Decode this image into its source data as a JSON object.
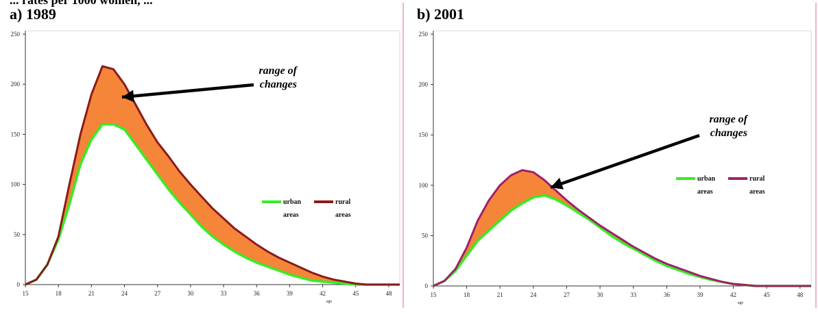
{
  "header": {
    "cut_text": "... rates per 1000 women, ..."
  },
  "chart_data": [
    {
      "type": "area",
      "title": "a) 1989",
      "x": [
        15,
        16,
        17,
        18,
        19,
        20,
        21,
        22,
        23,
        24,
        25,
        26,
        27,
        28,
        29,
        30,
        31,
        32,
        33,
        34,
        35,
        36,
        37,
        38,
        39,
        40,
        41,
        42,
        43,
        44,
        45,
        46,
        47,
        48,
        49
      ],
      "x_ticks": [
        "15",
        "18",
        "21",
        "24",
        "27",
        "30",
        "33",
        "36",
        "39",
        "42",
        "45",
        "48"
      ],
      "x_tick_values": [
        15,
        18,
        21,
        24,
        27,
        30,
        33,
        36,
        39,
        42,
        45,
        48
      ],
      "y_ticks": [
        "0",
        "50",
        "100",
        "150",
        "200",
        "250"
      ],
      "y_tick_values": [
        0,
        50,
        100,
        150,
        200,
        250
      ],
      "xlim": [
        15,
        49
      ],
      "ylim": [
        0,
        250
      ],
      "xlabel": "age",
      "series": [
        {
          "name": "urban areas",
          "color": "#33ee22",
          "values": [
            0,
            5,
            20,
            45,
            80,
            120,
            145,
            160,
            160,
            155,
            140,
            125,
            110,
            95,
            82,
            70,
            58,
            48,
            40,
            33,
            27,
            22,
            18,
            14,
            10,
            7,
            4,
            3,
            2,
            1,
            0,
            0,
            0,
            0,
            0
          ]
        },
        {
          "name": "rural areas",
          "color": "#8b1a1a",
          "values": [
            0,
            5,
            20,
            48,
            100,
            150,
            190,
            218,
            215,
            200,
            180,
            160,
            142,
            128,
            113,
            100,
            88,
            76,
            66,
            56,
            48,
            40,
            33,
            27,
            22,
            17,
            12,
            8,
            5,
            3,
            1,
            0,
            0,
            0,
            0
          ]
        }
      ],
      "fill_color": "#f58538",
      "legend_position": "right",
      "annotation": {
        "text_line1": "range of",
        "text_line2": "changes"
      }
    },
    {
      "type": "area",
      "title": "b) 2001",
      "x": [
        15,
        16,
        17,
        18,
        19,
        20,
        21,
        22,
        23,
        24,
        25,
        26,
        27,
        28,
        29,
        30,
        31,
        32,
        33,
        34,
        35,
        36,
        37,
        38,
        39,
        40,
        41,
        42,
        43,
        44,
        45,
        46,
        47,
        48,
        49
      ],
      "x_ticks": [
        "15",
        "18",
        "21",
        "24",
        "27",
        "30",
        "33",
        "36",
        "39",
        "42",
        "45",
        "48"
      ],
      "x_tick_values": [
        15,
        18,
        21,
        24,
        27,
        30,
        33,
        36,
        39,
        42,
        45,
        48
      ],
      "y_ticks": [
        "0",
        "50",
        "100",
        "150",
        "200",
        "250"
      ],
      "y_tick_values": [
        0,
        50,
        100,
        150,
        200,
        250
      ],
      "xlim": [
        15,
        49
      ],
      "ylim": [
        0,
        250
      ],
      "xlabel": "age",
      "series": [
        {
          "name": "urban areas",
          "color": "#33ee22",
          "values": [
            0,
            5,
            15,
            30,
            45,
            55,
            65,
            75,
            82,
            88,
            90,
            86,
            80,
            73,
            66,
            58,
            50,
            43,
            37,
            31,
            25,
            20,
            16,
            12,
            9,
            6,
            4,
            2,
            1,
            0,
            0,
            0,
            0,
            0,
            0
          ]
        },
        {
          "name": "rural areas",
          "color": "#a0206a",
          "values": [
            0,
            5,
            17,
            38,
            65,
            85,
            100,
            110,
            115,
            113,
            105,
            95,
            85,
            76,
            68,
            60,
            53,
            46,
            39,
            33,
            27,
            22,
            18,
            14,
            10,
            7,
            4,
            2,
            1,
            0,
            0,
            0,
            0,
            0,
            0
          ]
        }
      ],
      "fill_color": "#f58538",
      "legend_position": "right",
      "annotation": {
        "text_line1": "range of",
        "text_line2": "changes"
      }
    }
  ]
}
